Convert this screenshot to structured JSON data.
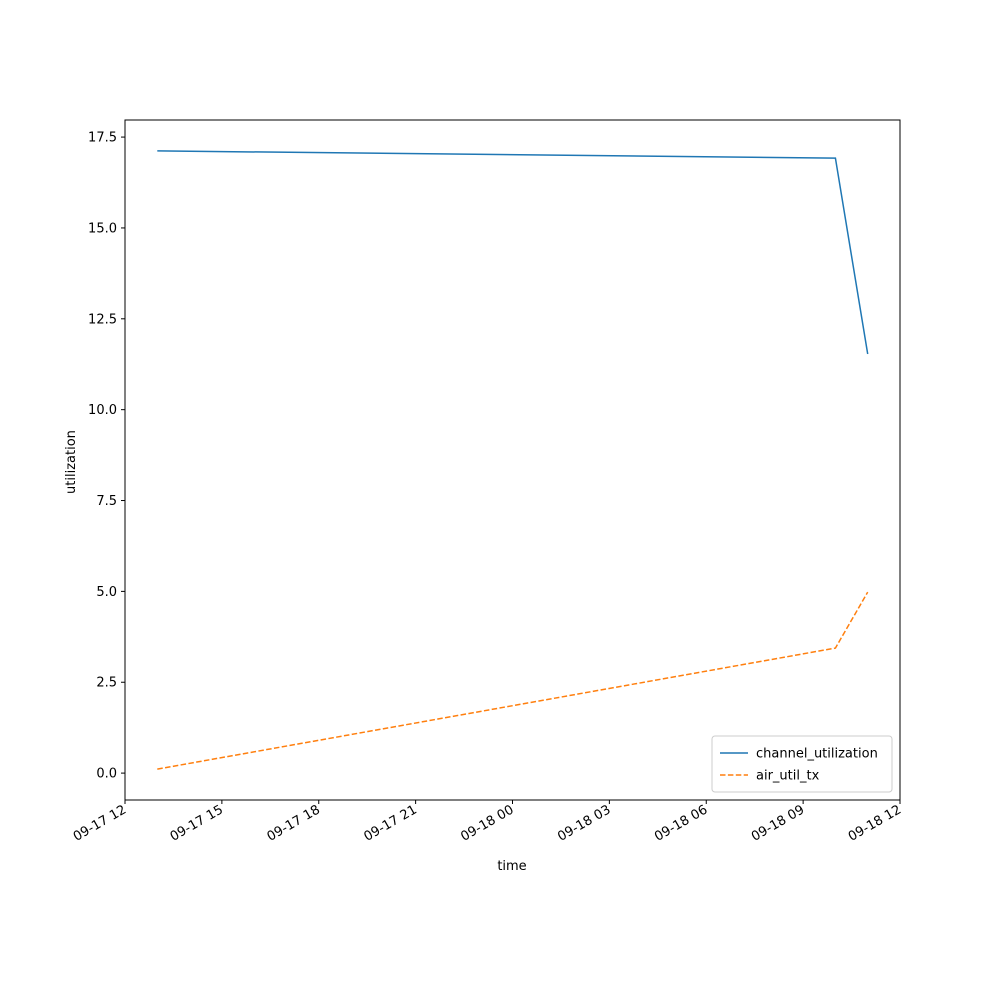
{
  "chart_data": {
    "type": "line",
    "x": [
      "09-17 13",
      "09-18 10",
      "09-18 11"
    ],
    "series": [
      {
        "name": "channel_utilization",
        "color": "#1f77b4",
        "linestyle": "solid",
        "values": [
          17.12,
          16.92,
          11.53
        ]
      },
      {
        "name": "air_util_tx",
        "color": "#ff7f0e",
        "linestyle": "dashed",
        "values": [
          0.11,
          3.44,
          4.98
        ]
      }
    ],
    "xlabel": "time",
    "ylabel": "utilization",
    "xlim": [
      "09-17 12",
      "09-18 12"
    ],
    "xticks": [
      "09-17 12",
      "09-17 15",
      "09-17 18",
      "09-17 21",
      "09-18 00",
      "09-18 03",
      "09-18 06",
      "09-18 09",
      "09-18 12"
    ],
    "ylim": [
      -0.74,
      17.97
    ],
    "yticks": [
      {
        "value": 0,
        "label": "0.0"
      },
      {
        "value": 2.5,
        "label": "2.5"
      },
      {
        "value": 5,
        "label": "5.0"
      },
      {
        "value": 7.5,
        "label": "7.5"
      },
      {
        "value": 10,
        "label": "10.0"
      },
      {
        "value": 12.5,
        "label": "12.5"
      },
      {
        "value": 15,
        "label": "15.0"
      },
      {
        "value": 17.5,
        "label": "17.5"
      }
    ],
    "grid": false,
    "legend": "lower right"
  }
}
